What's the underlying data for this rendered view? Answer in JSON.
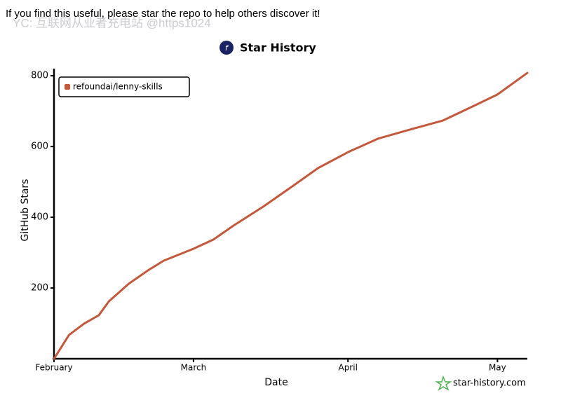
{
  "chart_data": {
    "type": "line",
    "notice": "If you find this useful, please star the repo to help others discover it!",
    "watermark": "YC: 互联网从业者充电站 @https1024",
    "title": "Star History",
    "x_label": "Date",
    "y_label": "GitHub Stars",
    "credit": "star-history.com",
    "x": [
      0,
      3,
      6,
      9,
      11,
      15,
      19,
      22,
      28,
      32,
      36,
      42,
      48,
      53,
      59,
      65,
      72,
      78,
      84,
      89,
      95
    ],
    "series": [
      {
        "name": "refoundai/lenny-skills",
        "color": "#c4583a",
        "values": [
          0,
          67,
          99,
          123,
          162,
          212,
          251,
          277,
          311,
          337,
          376,
          430,
          489,
          539,
          584,
          622,
          650,
          673,
          713,
          747,
          808
        ]
      }
    ],
    "xlim": [
      0,
      95
    ],
    "xticks": [
      {
        "value": 0,
        "label": "February"
      },
      {
        "value": 28,
        "label": "March"
      },
      {
        "value": 59,
        "label": "April"
      },
      {
        "value": 89,
        "label": "May"
      }
    ],
    "ylim": [
      0,
      820
    ],
    "yticks": [
      200,
      400,
      600,
      800
    ],
    "legend": "top-left"
  }
}
